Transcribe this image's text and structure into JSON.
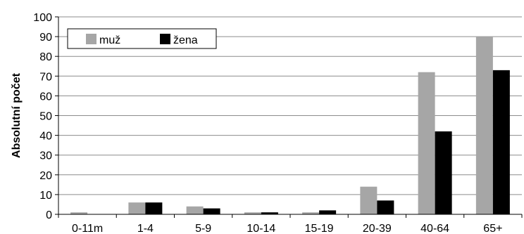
{
  "chart_data": {
    "type": "bar",
    "title": "",
    "xlabel": "",
    "ylabel": "Absolutní počet",
    "ylim": [
      0,
      100
    ],
    "yticks": [
      0,
      10,
      20,
      30,
      40,
      50,
      60,
      70,
      80,
      90,
      100
    ],
    "grid": true,
    "legend_position": "top-left",
    "categories": [
      "0-11m",
      "1-4",
      "5-9",
      "10-14",
      "15-19",
      "20-39",
      "40-64",
      "65+"
    ],
    "series": [
      {
        "name": "muž",
        "color": "#a6a6a6",
        "values": [
          1,
          6,
          4,
          1,
          1,
          14,
          72,
          90
        ]
      },
      {
        "name": "žena",
        "color": "#000000",
        "values": [
          0,
          6,
          3,
          1,
          2,
          7,
          42,
          73
        ]
      }
    ]
  }
}
